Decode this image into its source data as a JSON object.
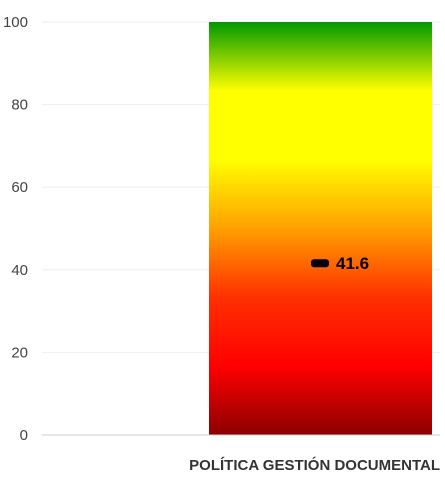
{
  "chart_data": {
    "type": "bar",
    "title": "",
    "xlabel": "",
    "ylabel": "",
    "categories": [
      "POLÍTICA GESTIÓN DOCUMENTAL"
    ],
    "ylim": [
      0,
      100
    ],
    "yticks": [
      0,
      20,
      40,
      60,
      80,
      100
    ],
    "grid": true,
    "background_band": {
      "from": 0,
      "to": 100,
      "gradient_colors_bottom_to_top": [
        "#8b0000",
        "#ff0000",
        "#ff3000",
        "#ffa000",
        "#ffff00",
        "#ffff00",
        "#009900"
      ]
    },
    "marker": {
      "category": "POLÍTICA GESTIÓN DOCUMENTAL",
      "value": 41.6,
      "label": "41.6",
      "color": "#000000"
    }
  }
}
